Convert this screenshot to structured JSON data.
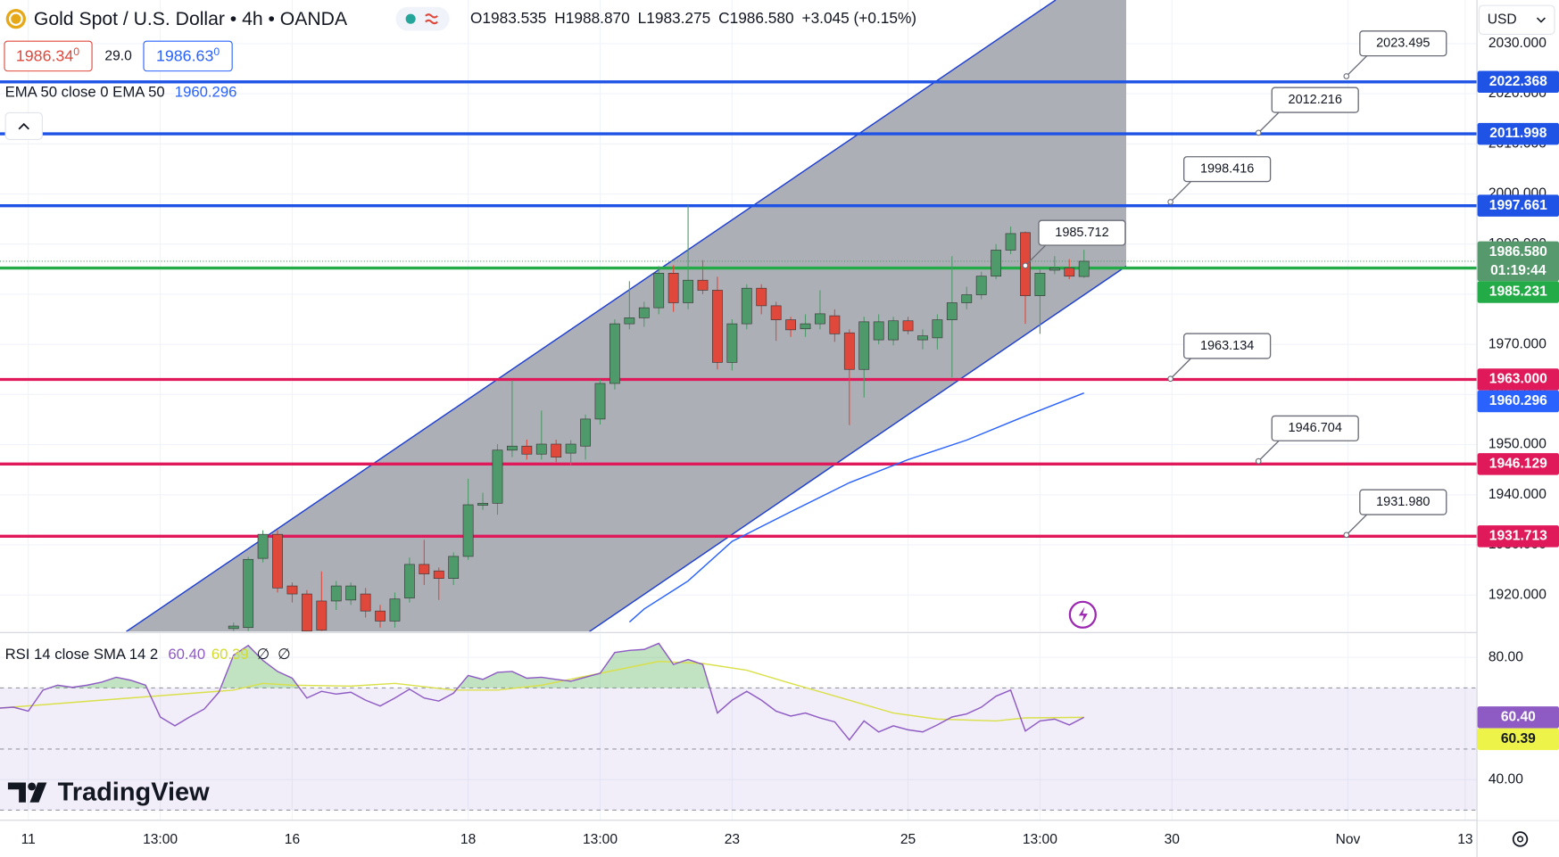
{
  "chart_data": [
    {
      "type": "candlestick",
      "title": "Gold Spot / U.S. Dollar • 4h • OANDA",
      "ohlc_legend": [
        {
          "key": "O",
          "text": "1983.535"
        },
        {
          "key": "H",
          "text": "1988.870"
        },
        {
          "key": "L",
          "text": "1983.275"
        },
        {
          "key": "C",
          "text": "1986.580"
        }
      ],
      "change": "+3.045 (+0.15%)",
      "sell": {
        "price": "1986.34",
        "pip": "0"
      },
      "spread": "29.0",
      "buy": {
        "price": "1986.63",
        "pip": "0"
      },
      "currency": "USD",
      "xlim": [
        -15.93,
        84.77
      ],
      "xticks": [
        {
          "value": -14,
          "label": "11"
        },
        {
          "value": -5,
          "label": "13:00"
        },
        {
          "value": 4,
          "label": "16"
        },
        {
          "value": 16,
          "label": "18"
        },
        {
          "value": 25,
          "label": "13:00"
        },
        {
          "value": 34,
          "label": "23"
        },
        {
          "value": 46,
          "label": "25"
        },
        {
          "value": 55,
          "label": "13:00"
        },
        {
          "value": 64,
          "label": "30"
        },
        {
          "value": 76,
          "label": "Nov"
        },
        {
          "value": 84,
          "label": "13"
        }
      ],
      "ylim": [
        1912.7,
        2038.7
      ],
      "yticks": [
        {
          "value": 1920,
          "label": "1920.000"
        },
        {
          "value": 1930,
          "label": "1930.000"
        },
        {
          "value": 1940,
          "label": "1940.000"
        },
        {
          "value": 1950,
          "label": "1950.000"
        },
        {
          "value": 1960,
          "label": "1960.000"
        },
        {
          "value": 1970,
          "label": "1970.000"
        },
        {
          "value": 1980,
          "label": "1980.000"
        },
        {
          "value": 1990,
          "label": "1990.000"
        },
        {
          "value": 2000,
          "label": "2000.000"
        },
        {
          "value": 2010,
          "label": "2010.000"
        },
        {
          "value": 2020,
          "label": "2020.000"
        },
        {
          "value": 2030,
          "label": "2030.000"
        }
      ],
      "grid": true,
      "series": [
        {
          "up_color": "#4f9a6b",
          "down_color": "#e0483c",
          "x": [
            0,
            1,
            2,
            3,
            4,
            5,
            6,
            7,
            8,
            9,
            10,
            11,
            12,
            13,
            14,
            15,
            16,
            17,
            18,
            19,
            20,
            21,
            22,
            23,
            24,
            25,
            26,
            27,
            28,
            29,
            30,
            31,
            32,
            33,
            34,
            35,
            36,
            37,
            38,
            39,
            40,
            41,
            42,
            43,
            44,
            45,
            46,
            47,
            48,
            49,
            50,
            51,
            52,
            53,
            54,
            55,
            56,
            57,
            58
          ],
          "open": [
            1913.3,
            1913.5,
            1927.3,
            1932.1,
            1921.8,
            1920.2,
            1918.8,
            1918.8,
            1919,
            1920.2,
            1916.8,
            1914.8,
            1919.4,
            1926.1,
            1924.8,
            1923.3,
            1927.7,
            1937.9,
            1938.3,
            1948.9,
            1949.7,
            1948.1,
            1950.1,
            1948.3,
            1949.7,
            1955.1,
            1962.2,
            1974.1,
            1975.3,
            1977.3,
            1984.2,
            1978.3,
            1982.8,
            1980.8,
            1966.4,
            1974.1,
            1981.2,
            1977.7,
            1974.9,
            1973.1,
            1974.1,
            1975.7,
            1972.3,
            1965,
            1970.9,
            1970.9,
            1974.7,
            1970.9,
            1971.3,
            1974.9,
            1978.3,
            1979.9,
            1983.6,
            1988.8,
            1992.3,
            1979.7,
            1984.8,
            1985.2,
            1983.535
          ],
          "high": [
            1914.5,
            1927.6,
            1932.9,
            1932.9,
            1922.5,
            1921,
            1924.7,
            1922.8,
            1922.5,
            1921.4,
            1918,
            1920.5,
            1927.5,
            1931,
            1925.5,
            1928.5,
            1943.2,
            1940.4,
            1950.1,
            1962.8,
            1951,
            1956.8,
            1951,
            1950.9,
            1956,
            1963,
            1975,
            1982.6,
            1978.5,
            1985.6,
            1985.8,
            1997.7,
            1986.8,
            1983.5,
            1975,
            1982,
            1982,
            1978.5,
            1975.5,
            1976,
            1980.8,
            1977,
            1973,
            1975.5,
            1976,
            1975.5,
            1975.5,
            1973,
            1976,
            1987.6,
            1981.5,
            1984.5,
            1990,
            1993.5,
            1992.5,
            1985,
            1987.6,
            1987,
            1988.87
          ],
          "low": [
            1912.8,
            1912.8,
            1926.5,
            1920.5,
            1918.5,
            1912.8,
            1912.8,
            1917,
            1918,
            1915.5,
            1913.5,
            1913.5,
            1918.5,
            1922,
            1919,
            1922,
            1927,
            1937,
            1936,
            1947.5,
            1947,
            1947,
            1946.5,
            1945.9,
            1947,
            1954,
            1961,
            1973,
            1973.5,
            1976,
            1976.5,
            1977,
            1980,
            1965,
            1964.8,
            1973,
            1976,
            1970.7,
            1971.5,
            1971.5,
            1973,
            1970.5,
            1953.9,
            1959.4,
            1970,
            1969.8,
            1972,
            1969,
            1969,
            1963.4,
            1977,
            1979,
            1983,
            1988,
            1974.1,
            1972.1,
            1984,
            1983,
            1983.275
          ],
          "close": [
            1913.8,
            1927.1,
            1932.1,
            1921.4,
            1920.2,
            1912.8,
            1913,
            1921.8,
            1921.8,
            1916.8,
            1914.8,
            1919.2,
            1926.1,
            1924.2,
            1923.3,
            1927.7,
            1938,
            1938.3,
            1948.9,
            1949.7,
            1948.1,
            1950.1,
            1947.5,
            1950.1,
            1955.1,
            1962.2,
            1974.1,
            1975.3,
            1977.3,
            1984.2,
            1978.3,
            1982.8,
            1980.8,
            1966.4,
            1974.1,
            1981.2,
            1977.7,
            1974.9,
            1972.9,
            1974.1,
            1976.1,
            1972.1,
            1965,
            1974.5,
            1974.5,
            1974.7,
            1972.7,
            1971.7,
            1974.9,
            1978.3,
            1979.9,
            1983.6,
            1988.8,
            1992.1,
            1979.7,
            1984.2,
            1985.2,
            1983.6,
            1986.58
          ]
        },
        {
          "type": "line",
          "name": "EMA 50 close 0 EMA 50",
          "color": "#2962ff",
          "x": [
            27,
            28,
            31,
            34,
            38,
            42,
            46,
            50,
            54,
            58
          ],
          "values": [
            1914.6,
            1917.2,
            1922.8,
            1930.7,
            1936.6,
            1942.4,
            1947.0,
            1950.9,
            1955.7,
            1960.296
          ]
        }
      ],
      "channel": {
        "color": "#1e3fd0",
        "fill": "#a9abb2",
        "upper": {
          "x": [
            -7.32,
            56.07
          ],
          "y": [
            1912.7,
            2038.7
          ]
        },
        "lower": {
          "x": [
            24.27,
            60.88
          ],
          "y": [
            1912.7,
            1985.6
          ]
        }
      },
      "horizontal_lines": [
        {
          "value": 2022.368,
          "label": "2022.368",
          "color": "#1e53e5"
        },
        {
          "value": 2011.998,
          "label": "2011.998",
          "color": "#1e53e5"
        },
        {
          "value": 1997.661,
          "label": "1997.661",
          "color": "#1e53e5"
        },
        {
          "value": 1985.231,
          "label": "1985.231",
          "color": "#22ab46"
        },
        {
          "value": 1963.0,
          "label": "1963.000",
          "color": "#e0195a"
        },
        {
          "value": 1946.129,
          "label": "1946.129",
          "color": "#e0195a"
        },
        {
          "value": 1931.713,
          "label": "1931.713",
          "color": "#e0195a"
        }
      ],
      "current_price": {
        "value": 1986.58,
        "label": "1986.580",
        "countdown": "01:19:44",
        "color": "#55996d"
      },
      "callouts": [
        {
          "x": 75.9,
          "value": 2023.495,
          "label": "2023.495"
        },
        {
          "x": 69.9,
          "value": 2012.216,
          "label": "2012.216"
        },
        {
          "x": 63.9,
          "value": 1998.416,
          "label": "1998.416"
        },
        {
          "x": 54.0,
          "value": 1985.712,
          "label": "1985.712"
        },
        {
          "x": 63.9,
          "value": 1963.134,
          "label": "1963.134"
        },
        {
          "x": 69.9,
          "value": 1946.704,
          "label": "1946.704"
        },
        {
          "x": 75.9,
          "value": 1931.98,
          "label": "1931.980"
        }
      ]
    },
    {
      "type": "line",
      "title": "RSI 14 close SMA 14 2",
      "flags": [
        "∅",
        "∅"
      ],
      "ylim": [
        26.7,
        87.8
      ],
      "yticks": [
        {
          "value": 80,
          "label": "80.00"
        },
        {
          "value": 40,
          "label": "40.00"
        }
      ],
      "band": [
        30,
        70
      ],
      "midline": 50,
      "series": [
        {
          "color": "#8e5bc4",
          "x": [
            -16,
            -15,
            -14,
            -13,
            -12,
            -11,
            -10,
            -9,
            -8,
            -7,
            -6,
            -5,
            -4,
            -3,
            -2,
            -1,
            0,
            1,
            2,
            3,
            4,
            5,
            6,
            7,
            8,
            9,
            10,
            11,
            12,
            13,
            14,
            15,
            16,
            17,
            18,
            19,
            20,
            21,
            22,
            23,
            24,
            25,
            26,
            27,
            28,
            29,
            30,
            31,
            32,
            33,
            34,
            35,
            36,
            37,
            38,
            39,
            40,
            41,
            42,
            43,
            44,
            45,
            46,
            47,
            48,
            49,
            50,
            51,
            52,
            53,
            54,
            55,
            56,
            57,
            58
          ],
          "values": [
            63.4,
            63.7,
            62.4,
            69.3,
            70.9,
            70.2,
            70.9,
            71.9,
            73.5,
            72.5,
            70.9,
            60.5,
            57.6,
            60.5,
            63.1,
            68.6,
            80.7,
            83.9,
            79.0,
            75.4,
            73.2,
            66.7,
            68.9,
            68.0,
            68.6,
            66.0,
            64.1,
            66.7,
            69.6,
            66.7,
            65.7,
            68.3,
            74.1,
            72.8,
            75.1,
            75.4,
            73.2,
            73.5,
            72.8,
            72.2,
            73.5,
            74.8,
            81.6,
            82.3,
            82.6,
            84.6,
            77.7,
            79.3,
            77.7,
            61.8,
            66.0,
            68.9,
            66.0,
            62.4,
            60.8,
            61.8,
            60.2,
            58.9,
            53.0,
            59.2,
            55.6,
            57.6,
            56.3,
            55.6,
            57.9,
            60.5,
            61.5,
            63.7,
            67.3,
            69.3,
            55.9,
            59.2,
            59.8,
            57.9,
            60.4
          ]
        },
        {
          "color": "#d9e04a",
          "x": [
            -16,
            -9,
            0,
            2,
            4,
            8,
            11,
            15,
            18,
            21,
            25,
            29,
            32,
            35,
            38,
            42,
            45,
            48,
            52,
            54,
            58
          ],
          "values": [
            63.4,
            66.0,
            69.3,
            71.5,
            70.9,
            70.6,
            71.5,
            69.3,
            69.3,
            70.9,
            74.8,
            78.7,
            78.0,
            75.8,
            71.5,
            66.0,
            61.8,
            59.8,
            59.2,
            60.2,
            60.39
          ]
        }
      ],
      "tags": [
        {
          "value": 60.4,
          "label": "60.40",
          "color": "#8e5bc4",
          "text_color": "#ffffff"
        },
        {
          "value": 60.39,
          "label": "60.39",
          "color": "#eef34a",
          "text_color": "#131722"
        }
      ]
    }
  ],
  "ui": {
    "watermark": "TradingView"
  }
}
